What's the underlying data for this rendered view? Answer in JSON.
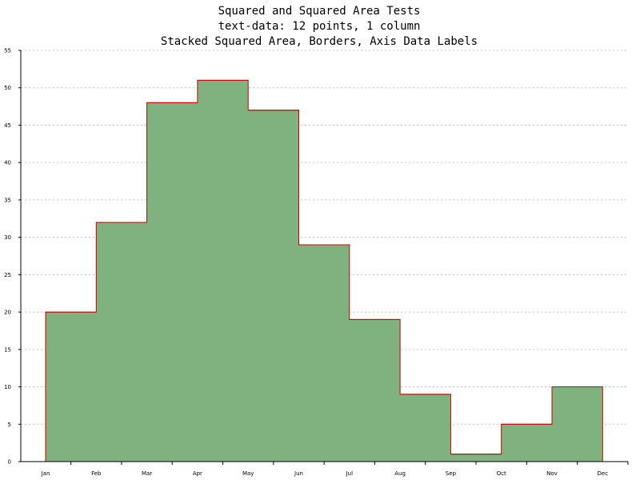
{
  "chart_data": {
    "type": "area",
    "style": "stacked squared (step) area with borders",
    "title": "Squared and Squared Area Tests",
    "subtitle_lines": [
      "text-data: 12 points, 1 column",
      "Stacked Squared Area, Borders, Axis Data Labels"
    ],
    "xlabel": "",
    "ylabel": "",
    "categories": [
      "Jan",
      "Feb",
      "Mar",
      "Apr",
      "May",
      "Jun",
      "Jul",
      "Aug",
      "Sep",
      "Oct",
      "Nov",
      "Dec"
    ],
    "series": [
      {
        "values": [
          20,
          32,
          48,
          51,
          47,
          29,
          19,
          9,
          1,
          5,
          10,
          0
        ]
      }
    ],
    "ylim": [
      0,
      55
    ],
    "yticks": [
      "0",
      "5",
      "10",
      "15",
      "20",
      "25",
      "30",
      "35",
      "40",
      "45",
      "50",
      "55"
    ],
    "grid": "horizontal dashed",
    "legend": "none",
    "colors": {
      "fill": "#80b280",
      "border": "#cc0000",
      "grid": "#c0c0c0",
      "axis": "#000000"
    }
  }
}
